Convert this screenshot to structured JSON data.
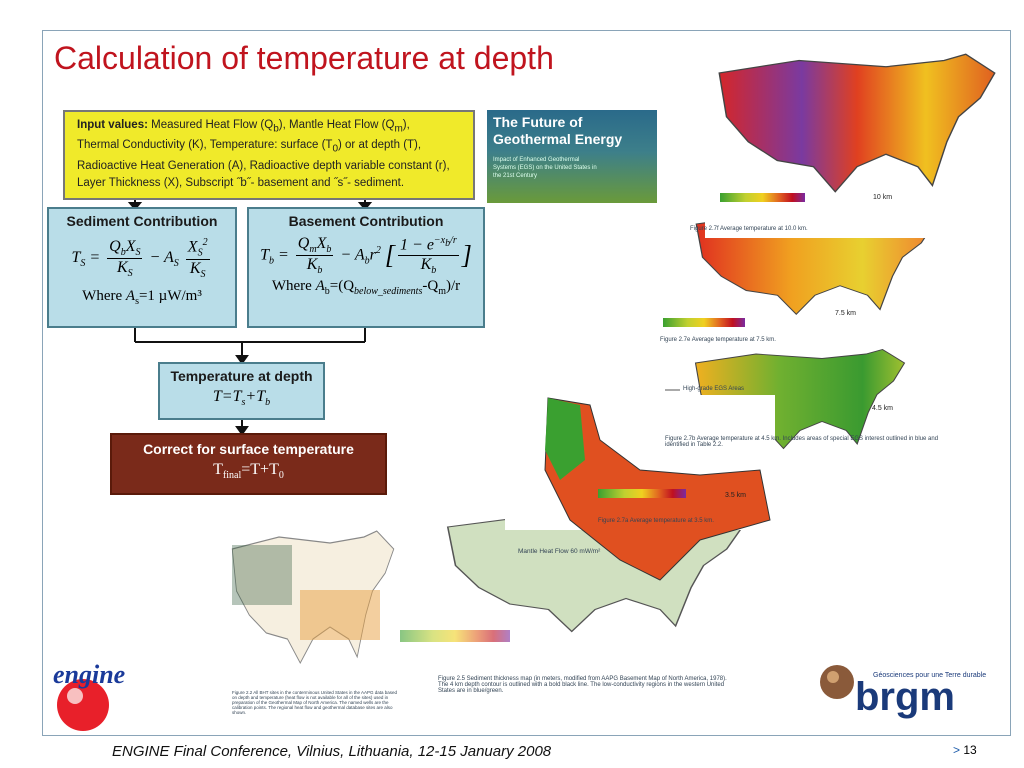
{
  "title": "Calculation of temperature at depth",
  "input": {
    "parts": [
      "Input values:",
      " Measured Heat Flow (Q",
      "b",
      "), Mantle Heat Flow (Q",
      "m",
      "),",
      "Thermal Conductivity (K), Temperature: surface (T",
      "0",
      ") or at depth (T),",
      "Radioactive Heat Generation (A), Radioactive depth variable constant (r),",
      "Layer Thickness (X), Subscript ˝b˝- basement and ˝s˝- sediment."
    ]
  },
  "sediment": {
    "title": "Sediment Contribution",
    "formula": [
      "T",
      "S",
      "=",
      "Q",
      "b",
      "X",
      "S",
      "K",
      "S",
      "−",
      "A",
      "S",
      "X",
      "S",
      "2",
      "K",
      "S"
    ],
    "where": [
      "Where",
      "A",
      "s",
      "=1 µW/m³"
    ]
  },
  "basement": {
    "title": "Basement Contribution",
    "formula": [
      "T",
      "b",
      "=",
      "Q",
      "m",
      "X",
      "b",
      "K",
      "b",
      "−",
      "A",
      "b",
      "r",
      "2",
      "1 − e",
      "−x",
      "b",
      "/r",
      "K",
      "b"
    ],
    "where": [
      "Where",
      "A",
      "b",
      "=(Q",
      "below_sediments",
      "-Q",
      "m",
      ")/r"
    ]
  },
  "depth": {
    "title": "Temperature at depth",
    "formula": [
      "T=T",
      "s",
      "+T",
      "b"
    ]
  },
  "correct": {
    "title": "Correct for surface temperature",
    "formula": [
      "T",
      "final",
      "=T+T",
      "0"
    ]
  },
  "book": {
    "title": "The Future of Geothermal Energy",
    "subtitle": "Impact of Enhanced Geothermal Systems (EGS) on the United States in the 21st Century"
  },
  "figures": {
    "f10": {
      "label": "10 km",
      "caption": "Figure 2.7f Average temperature at 10.0 km."
    },
    "f75": {
      "label": "7.5 km",
      "caption": "Figure 2.7e Average temperature at 7.5 km."
    },
    "f45": {
      "label": "4.5 km",
      "legend": "High-grade EGS Areas",
      "caption": "Figure 2.7b Average temperature at 4.5 km. Includes areas of special EGS interest outlined in blue and identified in Table 2.2."
    },
    "f35": {
      "label": "3.5 km",
      "caption": "Figure 2.7a Average temperature at 3.5 km."
    },
    "sed": {
      "legend": "Mantle Heat Flow 60 mW/m²",
      "caption": "Figure 2.5 Sediment thickness map (in meters, modified from AAPG Basement Map of North America, 1978). The 4 km depth contour is outlined with a bold black line. The low-conductivity regions in the western United States are in blue/green."
    },
    "bht": {
      "caption": "Figure 2.2 All BHT sites in the conterminous United States in the AAPG data based on depth and temperature (heat flow is not available for all of the sites) used in preparation of the Geothermal Map of North America. The named wells are the calibration points. The regional heat flow and geothermal database sites are also shown."
    }
  },
  "logos": {
    "engine": "engine",
    "brgm": "brgm",
    "brgm_tagline": "Géosciences pour une Terre durable"
  },
  "footer": {
    "text": "ENGINE Final Conference, Vilnius, Lithuania, 12-15 January 2008",
    "arrow": ">",
    "page": "13"
  }
}
